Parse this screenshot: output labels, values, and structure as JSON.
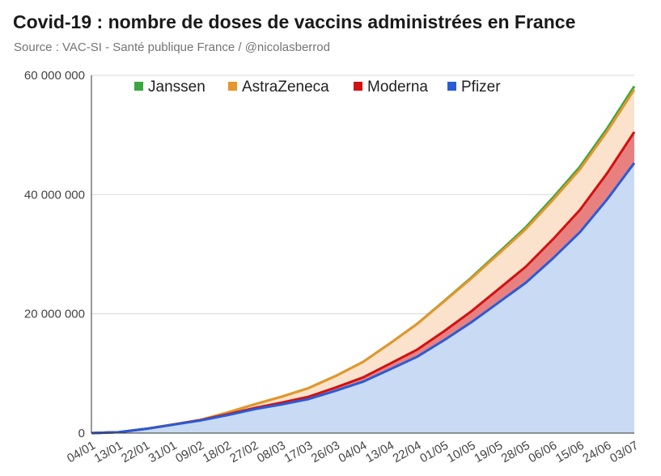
{
  "title": "Covid-19 : nombre de doses de vaccins administrées en France",
  "subtitle": "Source : VAC-SI - Santé publique France / @nicolasberrod",
  "chart_data": {
    "type": "area",
    "stacked": true,
    "x_labels": [
      "04/01",
      "13/01",
      "22/01",
      "31/01",
      "09/02",
      "18/02",
      "27/02",
      "08/03",
      "17/03",
      "26/03",
      "04/04",
      "13/04",
      "22/04",
      "01/05",
      "10/05",
      "19/05",
      "28/05",
      "06/06",
      "15/06",
      "24/06",
      "03/07"
    ],
    "ylim": [
      0,
      60000000
    ],
    "yticks": [
      0,
      20000000,
      40000000,
      60000000
    ],
    "ytick_labels": [
      "0",
      "20 000 000",
      "40 000 000",
      "60 000 000"
    ],
    "grid": true,
    "legend_position": "top",
    "series": [
      {
        "name": "Pfizer",
        "color": "#2a5bd7",
        "fill": "#c9daf5",
        "values": [
          0,
          150000,
          700000,
          1400000,
          2100000,
          3000000,
          4000000,
          4800000,
          5700000,
          7100000,
          8600000,
          10700000,
          12800000,
          15600000,
          18600000,
          21900000,
          25200000,
          29300000,
          33700000,
          39200000,
          45300000
        ]
      },
      {
        "name": "Moderna",
        "color": "#d21111",
        "fill": "#e88080",
        "values": [
          0,
          0,
          5000,
          30000,
          70000,
          130000,
          200000,
          300000,
          400000,
          540000,
          720000,
          950000,
          1200000,
          1500000,
          1850000,
          2250000,
          2700000,
          3200000,
          3750000,
          4400000,
          5200000
        ]
      },
      {
        "name": "AstraZeneca",
        "color": "#e6962a",
        "fill": "#fbe2cc",
        "values": [
          0,
          0,
          0,
          0,
          20000,
          300000,
          600000,
          1000000,
          1450000,
          1950000,
          2600000,
          3400000,
          4300000,
          5000000,
          5500000,
          5900000,
          6300000,
          6600000,
          6800000,
          7000000,
          7100000
        ]
      },
      {
        "name": "Janssen",
        "color": "#3aa640",
        "fill": "#c8e6c9",
        "values": [
          0,
          0,
          0,
          0,
          0,
          0,
          0,
          0,
          0,
          0,
          0,
          5000,
          30000,
          80000,
          150000,
          230000,
          310000,
          380000,
          440000,
          500000,
          560000
        ]
      }
    ]
  }
}
